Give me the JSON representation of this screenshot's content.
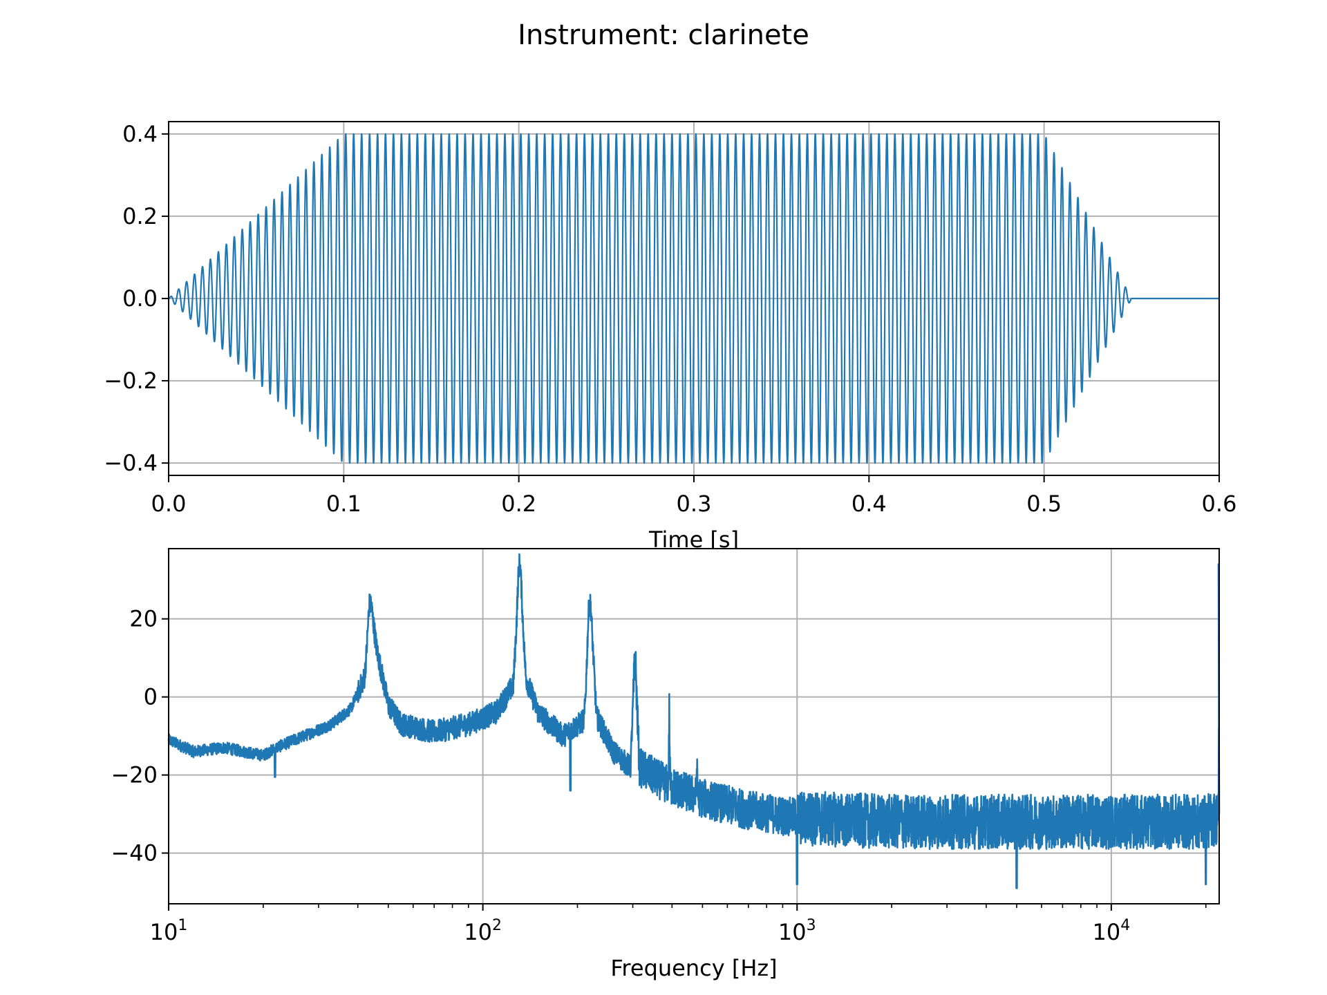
{
  "figure": {
    "title": "Instrument: clarinete"
  },
  "chart_data": [
    {
      "type": "line",
      "title": "",
      "xlabel": "Time [s]",
      "ylabel": "",
      "xlim": [
        0.0,
        0.6
      ],
      "ylim": [
        -0.43,
        0.43
      ],
      "grid": true,
      "color": "#1f77b4",
      "xticks": [
        0.0,
        0.1,
        0.2,
        0.3,
        0.4,
        0.5,
        0.6
      ],
      "xtick_labels": [
        "0.0",
        "0.1",
        "0.2",
        "0.3",
        "0.4",
        "0.5",
        "0.6"
      ],
      "yticks": [
        0.4,
        0.2,
        0.0,
        -0.2,
        -0.4
      ],
      "ytick_labels": [
        "0.4",
        "0.2",
        "0.0",
        "−0.2",
        "−0.4"
      ],
      "signal": {
        "frequency_hz": 220,
        "peak_amplitude": 0.4,
        "envelope": {
          "t": [
            0.0,
            0.1,
            0.5,
            0.55,
            0.6
          ],
          "amplitude": [
            0.0,
            0.4,
            0.4,
            0.0,
            0.0
          ]
        }
      }
    },
    {
      "type": "line",
      "title": "",
      "xlabel": "Frequency [Hz]",
      "ylabel": "",
      "xscale": "log",
      "xlim": [
        10,
        22050
      ],
      "ylim": [
        -53,
        38
      ],
      "grid": true,
      "color": "#1f77b4",
      "xticks": [
        10,
        100,
        1000,
        10000
      ],
      "xtick_labels": [
        {
          "base": "10",
          "exp": "1"
        },
        {
          "base": "10",
          "exp": "2"
        },
        {
          "base": "10",
          "exp": "3"
        },
        {
          "base": "10",
          "exp": "4"
        }
      ],
      "yticks": [
        20,
        0,
        -20,
        -40
      ],
      "ytick_labels": [
        "20",
        "0",
        "−20",
        "−40"
      ],
      "envelope": {
        "x": [
          10,
          12,
          15,
          20,
          22,
          27,
          33,
          38,
          42,
          44,
          46,
          50,
          55,
          70,
          90,
          110,
          125,
          131,
          137,
          150,
          180,
          210,
          220,
          230,
          260,
          295,
          305,
          315,
          360,
          400,
          500,
          700,
          1000,
          2000,
          5000,
          10000,
          20000,
          21700
        ],
        "y": [
          -11,
          -14,
          -13,
          -15,
          -13,
          -10,
          -7,
          -3,
          5,
          24,
          12,
          -2,
          -7,
          -9,
          -7,
          -4,
          3,
          34,
          5,
          -4,
          -10,
          -6,
          24,
          -5,
          -14,
          -18,
          11,
          -18,
          -21,
          -23,
          -26,
          -29,
          -31,
          -32,
          -32,
          -32,
          -32,
          -31
        ]
      },
      "peaks": [
        {
          "x": 43.6,
          "y": 24
        },
        {
          "x": 130.8,
          "y": 34
        },
        {
          "x": 218,
          "y": 24
        },
        {
          "x": 305,
          "y": 11
        },
        {
          "x": 392,
          "y": -3
        },
        {
          "x": 480,
          "y": -18
        },
        {
          "x": 22000,
          "y": 34
        }
      ],
      "dips": [
        {
          "x": 21.8,
          "y": -20.5
        },
        {
          "x": 190,
          "y": -24
        },
        {
          "x": 1000,
          "y": -48
        },
        {
          "x": 5000,
          "y": -49
        },
        {
          "x": 20000,
          "y": -48
        }
      ]
    }
  ]
}
